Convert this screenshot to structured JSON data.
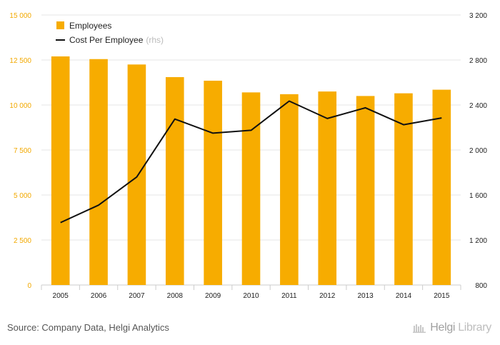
{
  "chart_data": {
    "type": "bar",
    "categories": [
      "2005",
      "2006",
      "2007",
      "2008",
      "2009",
      "2010",
      "2011",
      "2012",
      "2013",
      "2014",
      "2015"
    ],
    "series": [
      {
        "name": "Employees",
        "type": "bar",
        "axis": "left",
        "values": [
          12700,
          12550,
          12250,
          11550,
          11350,
          10700,
          10600,
          10750,
          10500,
          10650,
          10850
        ]
      },
      {
        "name": "Cost Per Employee",
        "type": "line",
        "axis": "right",
        "values": [
          1355,
          1510,
          1760,
          2275,
          2150,
          2175,
          2435,
          2280,
          2375,
          2225,
          2285
        ]
      }
    ],
    "left_axis": {
      "min": 0,
      "max": 15000,
      "ticks": [
        "0",
        "2 500",
        "5 000",
        "7 500",
        "10 000",
        "12 500",
        "15 000"
      ]
    },
    "right_axis": {
      "min": 800,
      "max": 3200,
      "ticks": [
        "800",
        "1 200",
        "1 600",
        "2 000",
        "2 400",
        "2 800",
        "3 200"
      ]
    },
    "legend": {
      "placement": "top-left",
      "items": [
        {
          "label": "Employees",
          "suffix": ""
        },
        {
          "label": "Cost Per Employee",
          "suffix": "(rhs)"
        }
      ]
    },
    "grid": true,
    "colors": {
      "bar": "#f7ac00",
      "line": "#111111",
      "grid": "#e6e6e6",
      "left_ticks": "#f2a900"
    }
  },
  "footer": {
    "source": "Source: Company Data, Helgi Analytics",
    "brand_helgi": "Helgi",
    "brand_library": "Library"
  }
}
